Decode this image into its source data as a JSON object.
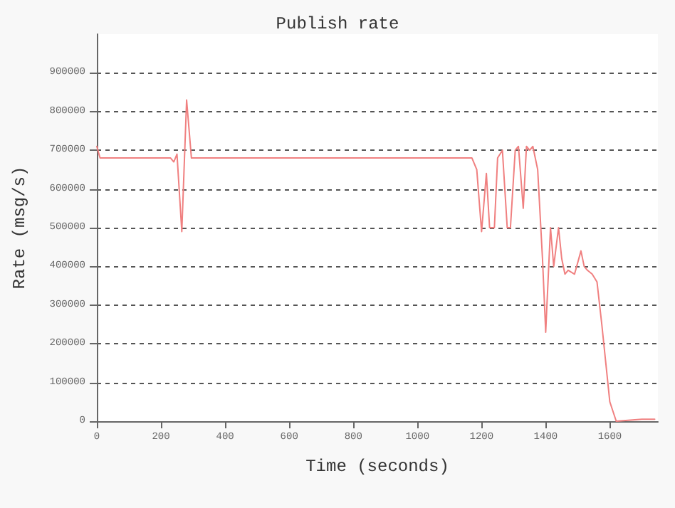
{
  "chart_data": {
    "type": "line",
    "title": "Publish rate",
    "xlabel": "Time (seconds)",
    "ylabel": "Rate (msg/s)",
    "x": [
      0,
      10,
      50,
      100,
      150,
      200,
      230,
      240,
      250,
      265,
      280,
      295,
      350,
      400,
      500,
      600,
      700,
      800,
      900,
      1000,
      1100,
      1170,
      1185,
      1200,
      1215,
      1225,
      1240,
      1250,
      1265,
      1280,
      1290,
      1305,
      1315,
      1330,
      1340,
      1350,
      1360,
      1375,
      1390,
      1400,
      1415,
      1425,
      1440,
      1450,
      1460,
      1470,
      1490,
      1510,
      1520,
      1530,
      1545,
      1560,
      1575,
      1600,
      1620,
      1700,
      1740
    ],
    "series": [
      {
        "color": "#f08080",
        "values": [
          710000,
          680000,
          680000,
          680000,
          680000,
          680000,
          680000,
          670000,
          690000,
          490000,
          830000,
          680000,
          680000,
          680000,
          680000,
          680000,
          680000,
          680000,
          680000,
          680000,
          680000,
          680000,
          650000,
          490000,
          640000,
          500000,
          500000,
          680000,
          700000,
          500000,
          500000,
          700000,
          710000,
          550000,
          710000,
          700000,
          710000,
          650000,
          420000,
          230000,
          500000,
          400000,
          500000,
          420000,
          380000,
          390000,
          380000,
          440000,
          400000,
          390000,
          380000,
          360000,
          250000,
          50000,
          0,
          5000,
          5000
        ]
      }
    ],
    "xlim": [
      0,
      1750
    ],
    "xticks": [
      0,
      200,
      400,
      600,
      800,
      1000,
      1200,
      1400,
      1600
    ],
    "ylim": [
      0,
      1000000
    ],
    "yticks": [
      0,
      100000,
      200000,
      300000,
      400000,
      500000,
      600000,
      700000,
      800000,
      900000
    ],
    "grid": "y",
    "marker": "none",
    "line_style": "solid"
  }
}
